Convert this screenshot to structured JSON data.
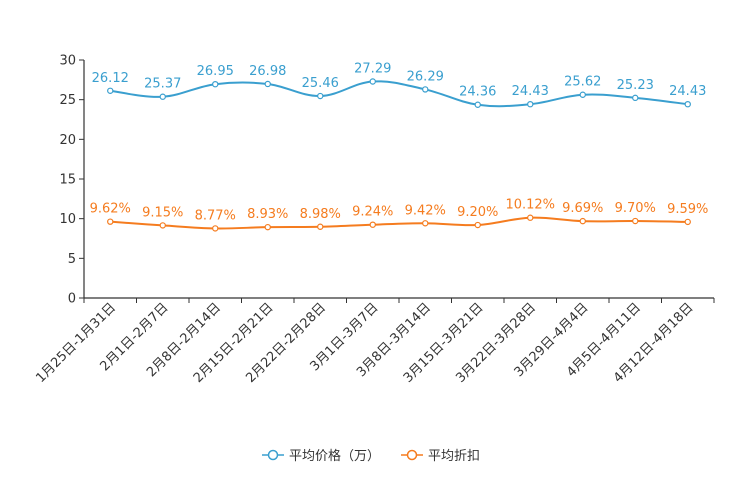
{
  "chart_data": {
    "type": "line",
    "categories": [
      "1月25日-1月31日",
      "2月1日-2月7日",
      "2月8日-2月14日",
      "2月15日-2月21日",
      "2月22日-2月28日",
      "3月1日-3月7日",
      "3月8日-3月14日",
      "3月15日-3月21日",
      "3月22日-3月28日",
      "3月29日-4月4日",
      "4月5日-4月11日",
      "4月12日-4月18日"
    ],
    "series": [
      {
        "name": "平均价格（万）",
        "color": "#3a9fcf",
        "values": [
          26.12,
          25.37,
          26.95,
          26.98,
          25.46,
          27.29,
          26.29,
          24.36,
          24.43,
          25.62,
          25.23,
          24.43
        ],
        "labels": [
          "26.12",
          "25.37",
          "26.95",
          "26.98",
          "25.46",
          "27.29",
          "26.29",
          "24.36",
          "24.43",
          "25.62",
          "25.23",
          "24.43"
        ]
      },
      {
        "name": "平均折扣",
        "color": "#f57c1f",
        "values": [
          9.62,
          9.15,
          8.77,
          8.93,
          8.98,
          9.24,
          9.42,
          9.2,
          10.12,
          9.69,
          9.7,
          9.59
        ],
        "labels": [
          "9.62%",
          "9.15%",
          "8.77%",
          "8.93%",
          "8.98%",
          "9.24%",
          "9.42%",
          "9.20%",
          "10.12%",
          "9.69%",
          "9.70%",
          "9.59%"
        ]
      }
    ],
    "y_ticks": [
      "0",
      "5",
      "10",
      "15",
      "20",
      "25",
      "30"
    ],
    "ylim": [
      0,
      30
    ],
    "title": "",
    "xlabel": "",
    "ylabel": "",
    "legend_position": "bottom"
  }
}
